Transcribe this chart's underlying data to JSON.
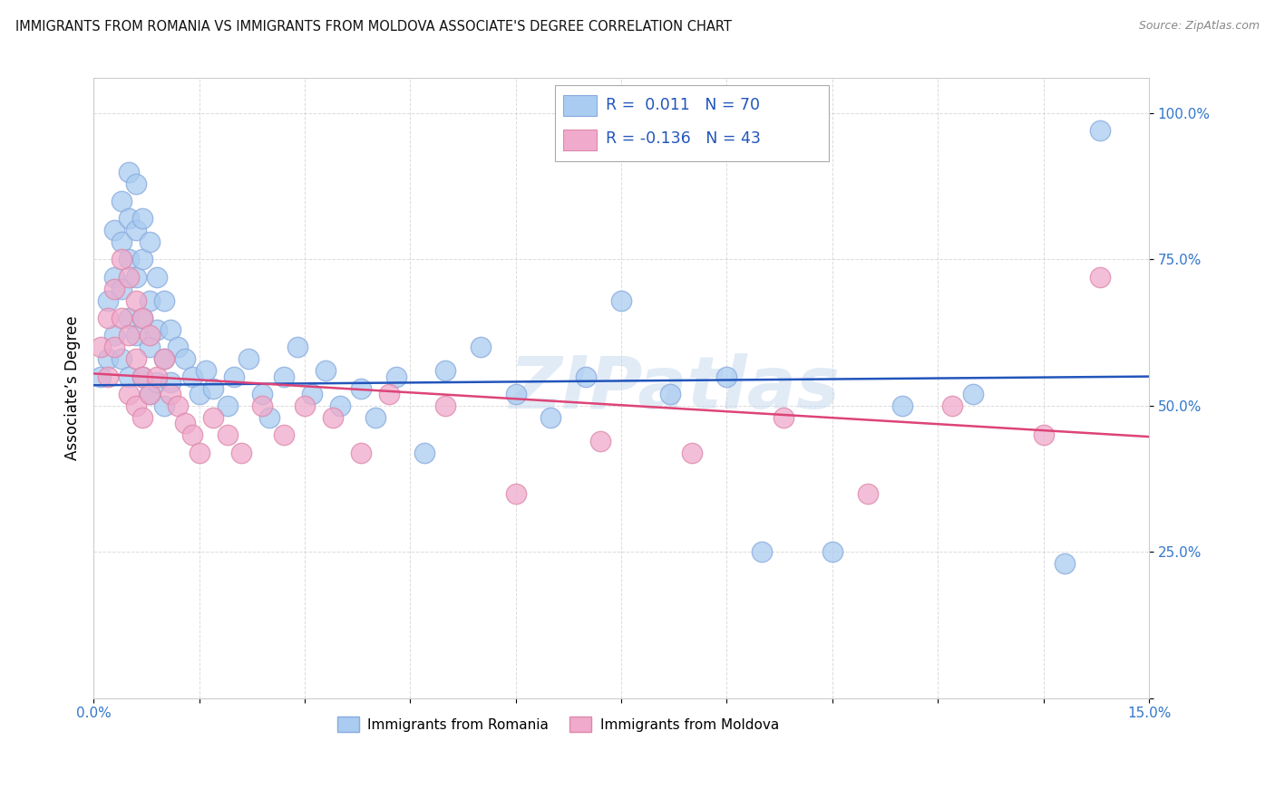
{
  "title": "IMMIGRANTS FROM ROMANIA VS IMMIGRANTS FROM MOLDOVA ASSOCIATE'S DEGREE CORRELATION CHART",
  "source": "Source: ZipAtlas.com",
  "ylabel": "Associate’s Degree",
  "xlim": [
    0.0,
    0.15
  ],
  "ylim": [
    0.0,
    1.06
  ],
  "xticks": [
    0.0,
    0.015,
    0.03,
    0.045,
    0.06,
    0.075,
    0.09,
    0.105,
    0.12,
    0.135,
    0.15
  ],
  "xtick_labels": [
    "0.0%",
    "",
    "",
    "",
    "",
    "",
    "",
    "",
    "",
    "",
    "15.0%"
  ],
  "yticks": [
    0.0,
    0.25,
    0.5,
    0.75,
    1.0
  ],
  "ytick_labels": [
    "",
    "25.0%",
    "50.0%",
    "75.0%",
    "100.0%"
  ],
  "romania_color": "#aaccf0",
  "moldova_color": "#f0aacc",
  "romania_line_color": "#2255bb",
  "moldova_line_color": "#dd4477",
  "watermark": "ZIPatlas",
  "romania_intercept": 0.535,
  "romania_slope": 0.1,
  "moldova_intercept": 0.555,
  "moldova_slope": -0.72,
  "romania_x": [
    0.001,
    0.002,
    0.002,
    0.003,
    0.003,
    0.003,
    0.004,
    0.004,
    0.004,
    0.004,
    0.005,
    0.005,
    0.005,
    0.005,
    0.005,
    0.006,
    0.006,
    0.006,
    0.006,
    0.007,
    0.007,
    0.007,
    0.007,
    0.008,
    0.008,
    0.008,
    0.008,
    0.009,
    0.009,
    0.009,
    0.01,
    0.01,
    0.01,
    0.011,
    0.011,
    0.012,
    0.013,
    0.014,
    0.015,
    0.016,
    0.017,
    0.019,
    0.02,
    0.022,
    0.024,
    0.025,
    0.027,
    0.029,
    0.031,
    0.033,
    0.035,
    0.038,
    0.04,
    0.043,
    0.047,
    0.05,
    0.055,
    0.06,
    0.065,
    0.07,
    0.075,
    0.082,
    0.09,
    0.095,
    0.105,
    0.115,
    0.125,
    0.138,
    0.143
  ],
  "romania_y": [
    0.55,
    0.68,
    0.58,
    0.8,
    0.72,
    0.62,
    0.85,
    0.78,
    0.7,
    0.58,
    0.9,
    0.82,
    0.75,
    0.65,
    0.55,
    0.88,
    0.8,
    0.72,
    0.62,
    0.82,
    0.75,
    0.65,
    0.55,
    0.78,
    0.68,
    0.6,
    0.52,
    0.72,
    0.63,
    0.54,
    0.68,
    0.58,
    0.5,
    0.63,
    0.54,
    0.6,
    0.58,
    0.55,
    0.52,
    0.56,
    0.53,
    0.5,
    0.55,
    0.58,
    0.52,
    0.48,
    0.55,
    0.6,
    0.52,
    0.56,
    0.5,
    0.53,
    0.48,
    0.55,
    0.42,
    0.56,
    0.6,
    0.52,
    0.48,
    0.55,
    0.68,
    0.52,
    0.55,
    0.25,
    0.25,
    0.5,
    0.52,
    0.23,
    0.97
  ],
  "moldova_x": [
    0.001,
    0.002,
    0.002,
    0.003,
    0.003,
    0.004,
    0.004,
    0.005,
    0.005,
    0.005,
    0.006,
    0.006,
    0.006,
    0.007,
    0.007,
    0.007,
    0.008,
    0.008,
    0.009,
    0.01,
    0.011,
    0.012,
    0.013,
    0.014,
    0.015,
    0.017,
    0.019,
    0.021,
    0.024,
    0.027,
    0.03,
    0.034,
    0.038,
    0.042,
    0.05,
    0.06,
    0.072,
    0.085,
    0.098,
    0.11,
    0.122,
    0.135,
    0.143
  ],
  "moldova_y": [
    0.6,
    0.65,
    0.55,
    0.7,
    0.6,
    0.75,
    0.65,
    0.72,
    0.62,
    0.52,
    0.68,
    0.58,
    0.5,
    0.65,
    0.55,
    0.48,
    0.62,
    0.52,
    0.55,
    0.58,
    0.52,
    0.5,
    0.47,
    0.45,
    0.42,
    0.48,
    0.45,
    0.42,
    0.5,
    0.45,
    0.5,
    0.48,
    0.42,
    0.52,
    0.5,
    0.35,
    0.44,
    0.42,
    0.48,
    0.35,
    0.5,
    0.45,
    0.72
  ]
}
